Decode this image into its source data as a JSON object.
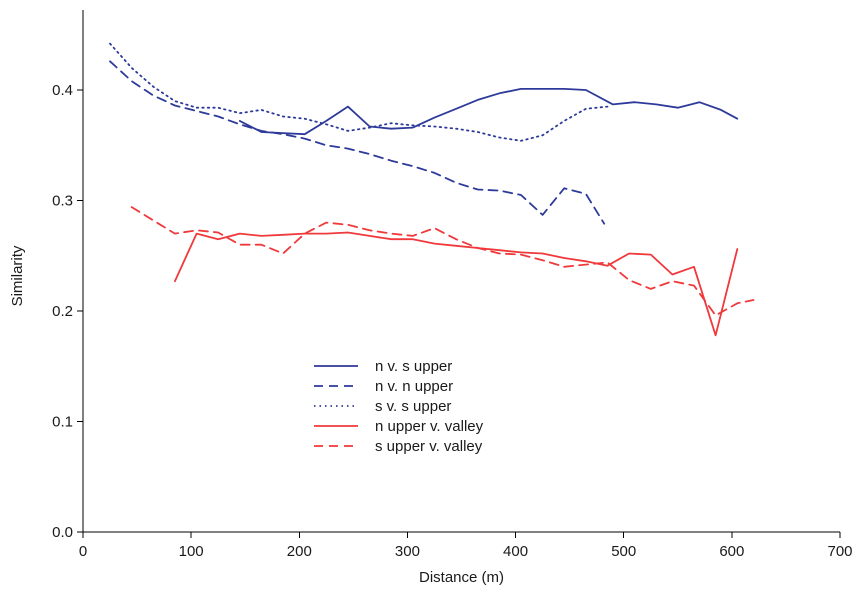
{
  "chart_data": {
    "type": "line",
    "title": "",
    "xlabel": "Distance (m)",
    "ylabel": "Similarity",
    "xlim": [
      0,
      700
    ],
    "ylim": [
      0,
      0.5
    ],
    "xticks": [
      "0",
      "100",
      "200",
      "300",
      "400",
      "500",
      "600",
      "700"
    ],
    "xtick_values": [
      0,
      100,
      200,
      300,
      400,
      500,
      600,
      700
    ],
    "yticks": [
      "0.0",
      "0.1",
      "0.2",
      "0.3",
      "0.4"
    ],
    "ytick_values": [
      0,
      0.1,
      0.2,
      0.3,
      0.4
    ],
    "grid": false,
    "legend_position": "lower-center",
    "series": [
      {
        "name": "n v. s upper",
        "color": "#2d3a9a",
        "style": "solid",
        "x": [
          145,
          165,
          185,
          205,
          225,
          245,
          265,
          285,
          305,
          325,
          345,
          365,
          385,
          405,
          425,
          445,
          465,
          490,
          510,
          530,
          550,
          570,
          590,
          605
        ],
        "y": [
          0.372,
          0.362,
          0.361,
          0.36,
          0.372,
          0.385,
          0.367,
          0.365,
          0.366,
          0.375,
          0.383,
          0.391,
          0.397,
          0.401,
          0.401,
          0.401,
          0.4,
          0.387,
          0.389,
          0.387,
          0.384,
          0.389,
          0.382,
          0.374
        ]
      },
      {
        "name": "n v. n upper",
        "color": "#2d3a9a",
        "style": "dashed",
        "x": [
          25,
          45,
          65,
          85,
          105,
          125,
          145,
          165,
          185,
          205,
          225,
          245,
          265,
          285,
          305,
          325,
          345,
          365,
          385,
          405,
          425,
          445,
          465,
          482
        ],
        "y": [
          0.426,
          0.408,
          0.395,
          0.386,
          0.381,
          0.376,
          0.369,
          0.363,
          0.36,
          0.356,
          0.35,
          0.347,
          0.342,
          0.336,
          0.331,
          0.325,
          0.316,
          0.31,
          0.309,
          0.305,
          0.287,
          0.311,
          0.306,
          0.279
        ]
      },
      {
        "name": "s v. s upper",
        "color": "#2d3a9a",
        "style": "dotted",
        "x": [
          25,
          45,
          65,
          85,
          105,
          125,
          145,
          165,
          185,
          205,
          225,
          245,
          265,
          285,
          305,
          325,
          345,
          365,
          385,
          405,
          425,
          445,
          465,
          485
        ],
        "y": [
          0.442,
          0.42,
          0.403,
          0.39,
          0.384,
          0.384,
          0.379,
          0.382,
          0.376,
          0.374,
          0.369,
          0.363,
          0.366,
          0.37,
          0.368,
          0.367,
          0.365,
          0.362,
          0.357,
          0.354,
          0.359,
          0.372,
          0.383,
          0.385
        ]
      },
      {
        "name": "n upper v. valley",
        "color": "#f0393c",
        "style": "solid",
        "x": [
          85,
          105,
          125,
          145,
          165,
          185,
          205,
          225,
          245,
          265,
          285,
          305,
          325,
          345,
          365,
          385,
          405,
          425,
          445,
          465,
          485,
          505,
          525,
          545,
          565,
          585,
          605
        ],
        "y": [
          0.227,
          0.27,
          0.265,
          0.27,
          0.268,
          0.269,
          0.27,
          0.27,
          0.271,
          0.268,
          0.265,
          0.265,
          0.261,
          0.259,
          0.257,
          0.255,
          0.253,
          0.252,
          0.248,
          0.245,
          0.241,
          0.252,
          0.251,
          0.233,
          0.24,
          0.178,
          0.256
        ]
      },
      {
        "name": "s upper v. valley",
        "color": "#f0393c",
        "style": "dashed",
        "x": [
          45,
          65,
          85,
          105,
          125,
          145,
          165,
          185,
          205,
          225,
          245,
          265,
          285,
          305,
          325,
          345,
          365,
          385,
          405,
          425,
          445,
          465,
          485,
          505,
          525,
          545,
          565,
          585,
          605,
          620
        ],
        "y": [
          0.294,
          0.282,
          0.27,
          0.273,
          0.271,
          0.26,
          0.26,
          0.252,
          0.27,
          0.28,
          0.278,
          0.273,
          0.27,
          0.268,
          0.275,
          0.265,
          0.257,
          0.252,
          0.251,
          0.246,
          0.24,
          0.242,
          0.244,
          0.228,
          0.22,
          0.227,
          0.223,
          0.196,
          0.207,
          0.21
        ]
      }
    ]
  }
}
